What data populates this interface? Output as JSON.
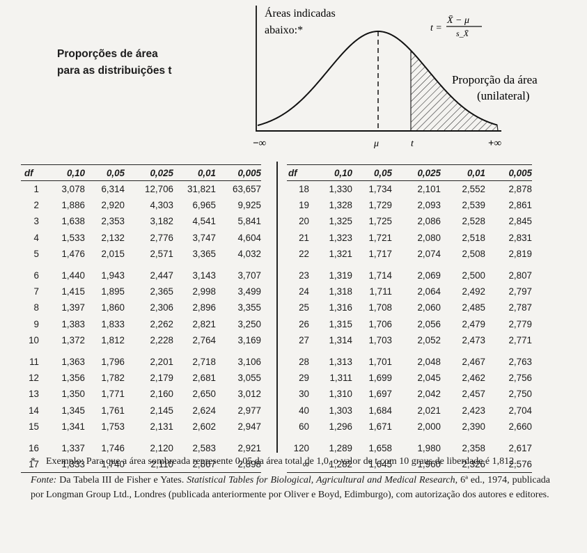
{
  "left_title": {
    "line1": "Proporções de área",
    "line2": "para as distribuições t"
  },
  "figure": {
    "caption_line1": "Áreas indicadas",
    "caption_line2": "abaixo:*",
    "formula_lhs": "t =",
    "formula_numerator": "X̄ − μ",
    "formula_denominator": "s_X̄",
    "area_label_line1": "Proporção da área",
    "area_label_line2": "(unilateral)",
    "axis_minus_inf": "−∞",
    "axis_mu": "μ",
    "axis_t": "t",
    "axis_plus_inf": "+∞"
  },
  "table": {
    "headers": [
      "df",
      "0,10",
      "0,05",
      "0,025",
      "0,01",
      "0,005"
    ],
    "left_rows": [
      [
        "1",
        "3,078",
        "6,314",
        "12,706",
        "31,821",
        "63,657"
      ],
      [
        "2",
        "1,886",
        "2,920",
        "4,303",
        "6,965",
        "9,925"
      ],
      [
        "3",
        "1,638",
        "2,353",
        "3,182",
        "4,541",
        "5,841"
      ],
      [
        "4",
        "1,533",
        "2,132",
        "2,776",
        "3,747",
        "4,604"
      ],
      [
        "5",
        "1,476",
        "2,015",
        "2,571",
        "3,365",
        "4,032"
      ],
      [
        "6",
        "1,440",
        "1,943",
        "2,447",
        "3,143",
        "3,707"
      ],
      [
        "7",
        "1,415",
        "1,895",
        "2,365",
        "2,998",
        "3,499"
      ],
      [
        "8",
        "1,397",
        "1,860",
        "2,306",
        "2,896",
        "3,355"
      ],
      [
        "9",
        "1,383",
        "1,833",
        "2,262",
        "2,821",
        "3,250"
      ],
      [
        "10",
        "1,372",
        "1,812",
        "2,228",
        "2,764",
        "3,169"
      ],
      [
        "11",
        "1,363",
        "1,796",
        "2,201",
        "2,718",
        "3,106"
      ],
      [
        "12",
        "1,356",
        "1,782",
        "2,179",
        "2,681",
        "3,055"
      ],
      [
        "13",
        "1,350",
        "1,771",
        "2,160",
        "2,650",
        "3,012"
      ],
      [
        "14",
        "1,345",
        "1,761",
        "2,145",
        "2,624",
        "2,977"
      ],
      [
        "15",
        "1,341",
        "1,753",
        "2,131",
        "2,602",
        "2,947"
      ],
      [
        "16",
        "1,337",
        "1,746",
        "2,120",
        "2,583",
        "2,921"
      ],
      [
        "17",
        "1,333",
        "1,740",
        "2,110",
        "2,567",
        "2,898"
      ]
    ],
    "right_rows": [
      [
        "18",
        "1,330",
        "1,734",
        "2,101",
        "2,552",
        "2,878"
      ],
      [
        "19",
        "1,328",
        "1,729",
        "2,093",
        "2,539",
        "2,861"
      ],
      [
        "20",
        "1,325",
        "1,725",
        "2,086",
        "2,528",
        "2,845"
      ],
      [
        "21",
        "1,323",
        "1,721",
        "2,080",
        "2,518",
        "2,831"
      ],
      [
        "22",
        "1,321",
        "1,717",
        "2,074",
        "2,508",
        "2,819"
      ],
      [
        "23",
        "1,319",
        "1,714",
        "2,069",
        "2,500",
        "2,807"
      ],
      [
        "24",
        "1,318",
        "1,711",
        "2,064",
        "2,492",
        "2,797"
      ],
      [
        "25",
        "1,316",
        "1,708",
        "2,060",
        "2,485",
        "2,787"
      ],
      [
        "26",
        "1,315",
        "1,706",
        "2,056",
        "2,479",
        "2,779"
      ],
      [
        "27",
        "1,314",
        "1,703",
        "2,052",
        "2,473",
        "2,771"
      ],
      [
        "28",
        "1,313",
        "1,701",
        "2,048",
        "2,467",
        "2,763"
      ],
      [
        "29",
        "1,311",
        "1,699",
        "2,045",
        "2,462",
        "2,756"
      ],
      [
        "30",
        "1,310",
        "1,697",
        "2,042",
        "2,457",
        "2,750"
      ],
      [
        "40",
        "1,303",
        "1,684",
        "2,021",
        "2,423",
        "2,704"
      ],
      [
        "60",
        "1,296",
        "1,671",
        "2,000",
        "2,390",
        "2,660"
      ],
      [
        "120",
        "1,289",
        "1,658",
        "1,980",
        "2,358",
        "2,617"
      ],
      [
        "∞",
        "1,282",
        "1,645",
        "1,960",
        "2,326",
        "2,576"
      ]
    ]
  },
  "notes": {
    "star": "*",
    "example": "Exemplo: Para que a área sombreada represente 0,05 da área total de 1,0, o valor de t com 10 graus de liberdade é 1,812.",
    "source_label": "Fonte:",
    "source_pre": " Da Tabela III de Fisher e Yates. ",
    "source_book": "Statistical Tables for Biological, Agricultural and Medical Research",
    "source_post": ", 6ª ed., 1974, publicada por Longman Group Ltd., Londres (publicada anteriormente por Oliver e Boyd, Edimburgo), com autorização dos autores e editores."
  }
}
